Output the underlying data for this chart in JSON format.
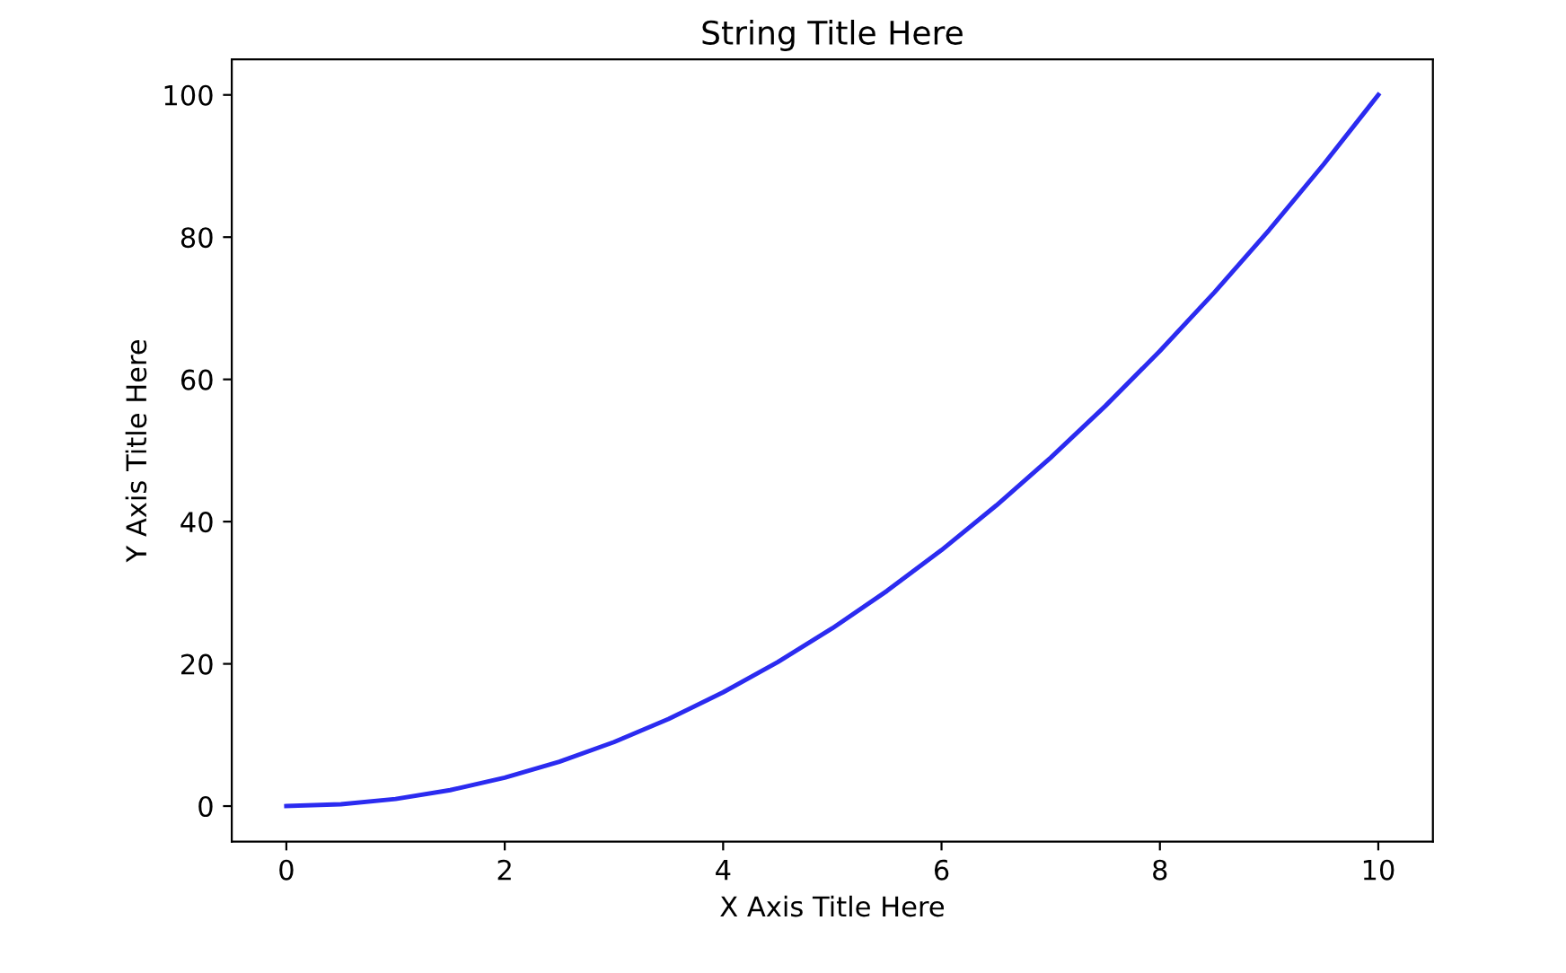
{
  "chart_data": {
    "type": "line",
    "title": "String Title Here",
    "xlabel": "X Axis Title Here",
    "ylabel": "Y Axis Title Here",
    "x": [
      0,
      0.5,
      1,
      1.5,
      2,
      2.5,
      3,
      3.5,
      4,
      4.5,
      5,
      5.5,
      6,
      6.5,
      7,
      7.5,
      8,
      8.5,
      9,
      9.5,
      10
    ],
    "series": [
      {
        "color": "#2b2bf0",
        "values": [
          0,
          0.25,
          1,
          2.25,
          4,
          6.25,
          9,
          12.25,
          16,
          20.25,
          25,
          30.25,
          36,
          42.25,
          49,
          56.25,
          64,
          72.25,
          81,
          90.25,
          100
        ]
      }
    ],
    "xlim": [
      -0.5,
      10.5
    ],
    "ylim": [
      -5,
      105
    ],
    "xticks": [
      0,
      2,
      4,
      6,
      8,
      10
    ],
    "yticks": [
      0,
      20,
      40,
      60,
      80,
      100
    ],
    "grid": false,
    "legend": false,
    "marker": "none",
    "line_style": "solid"
  }
}
